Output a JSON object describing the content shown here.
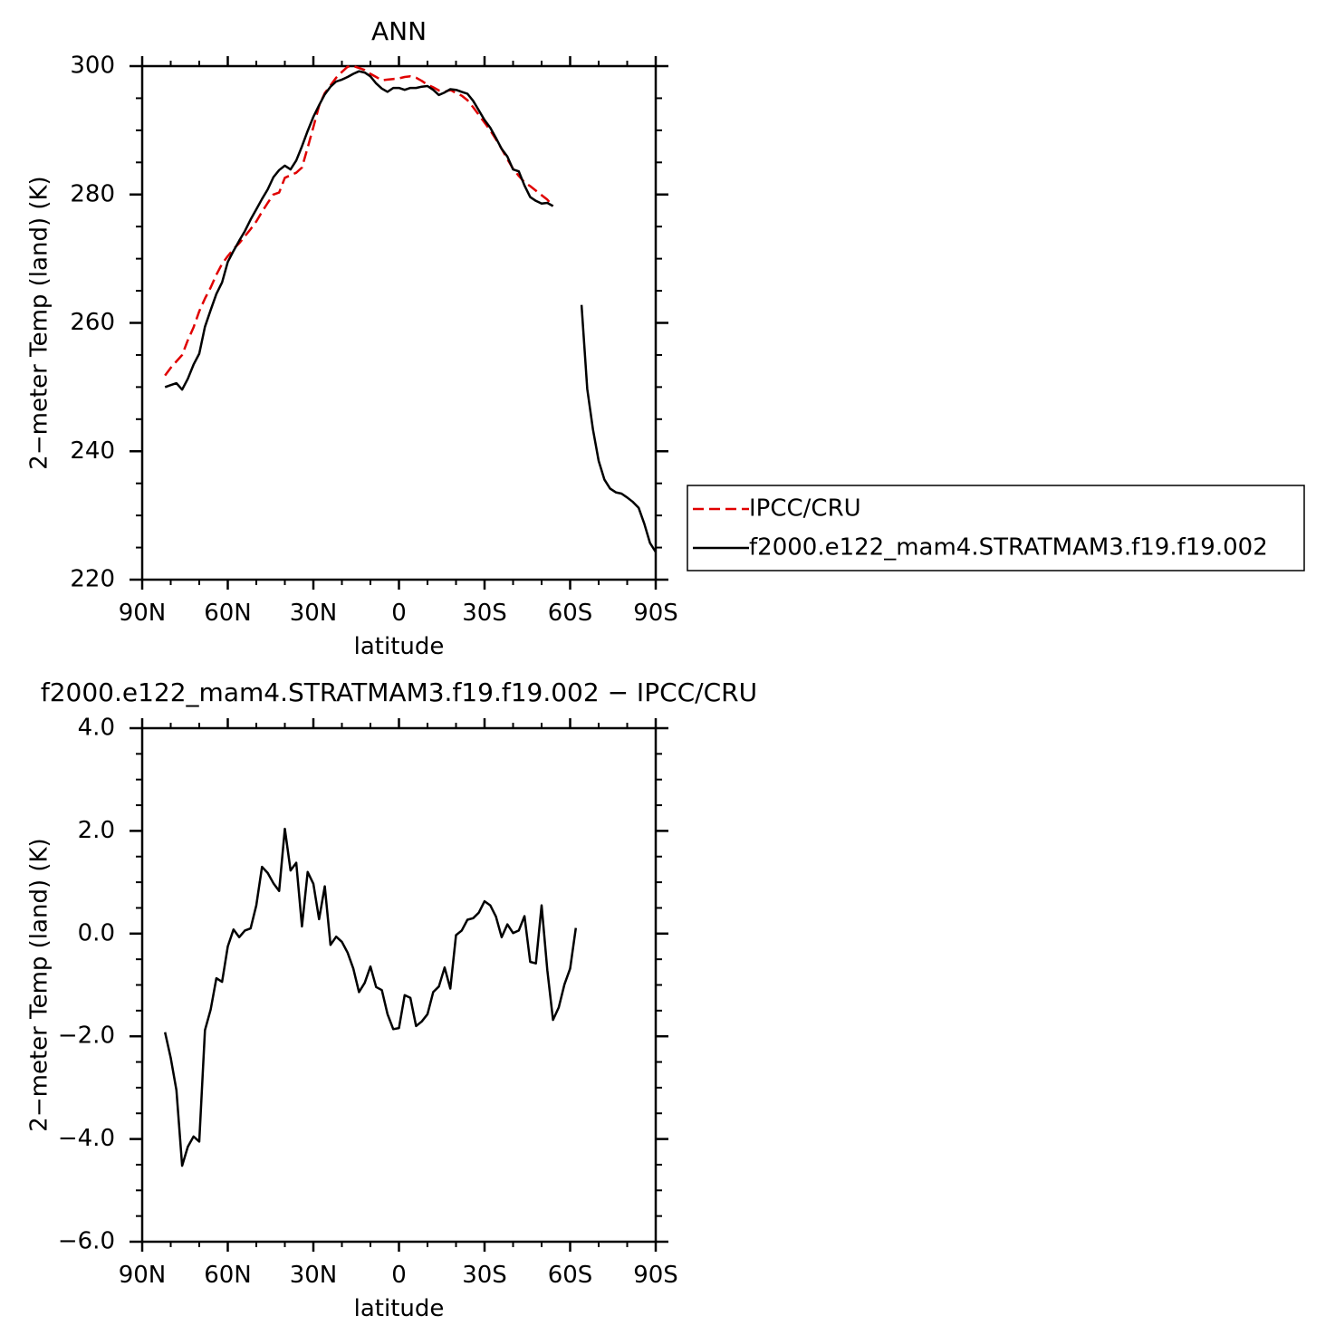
{
  "chart_data": [
    {
      "type": "line",
      "title": "ANN",
      "xlabel": "latitude",
      "ylabel": "2−meter Temp (land) (K)",
      "xlim": [
        90,
        -90
      ],
      "ylim": [
        220,
        300
      ],
      "x_ticks": [
        90,
        60,
        30,
        0,
        -30,
        -60,
        -90
      ],
      "x_tick_labels": [
        "90N",
        "60N",
        "30N",
        "0",
        "30S",
        "60S",
        "90S"
      ],
      "y_ticks": [
        220,
        240,
        260,
        280,
        300
      ],
      "y_tick_labels": [
        "220",
        "240",
        "260",
        "280",
        "300"
      ],
      "grid": false,
      "legend": {
        "placement": "right",
        "entries": [
          {
            "label": "IPCC/CRU",
            "color": "#e00000",
            "dash": "dashed"
          },
          {
            "label": "f2000.e122_mam4.STRATMAM3.f19.f19.002",
            "color": "#000000",
            "dash": "solid"
          }
        ]
      },
      "series": [
        {
          "name": "IPCC/CRU",
          "color": "#e00000",
          "dash": "dashed",
          "segments": [
            [
              [
                82,
                251.8
              ],
              [
                80,
                253
              ],
              [
                78,
                254
              ],
              [
                76,
                255
              ],
              [
                74,
                257.3
              ],
              [
                72,
                259.3
              ],
              [
                70,
                261.8
              ],
              [
                68,
                263.8
              ],
              [
                66,
                265.5
              ],
              [
                64,
                267.5
              ],
              [
                62,
                269.2
              ],
              [
                60,
                270.4
              ],
              [
                58,
                271.5
              ],
              [
                56,
                272.4
              ],
              [
                54,
                273.5
              ],
              [
                52,
                274.6
              ],
              [
                50,
                275.8
              ],
              [
                48,
                277.3
              ],
              [
                46,
                278.7
              ],
              [
                44,
                280
              ],
              [
                42,
                280.3
              ],
              [
                40,
                282.6
              ],
              [
                38,
                283
              ],
              [
                36,
                283.4
              ],
              [
                34,
                284.2
              ],
              [
                32,
                287.3
              ],
              [
                30,
                290.5
              ],
              [
                28,
                293.8
              ],
              [
                26,
                295.8
              ],
              [
                24,
                297
              ],
              [
                22,
                298.2
              ],
              [
                20,
                299.1
              ],
              [
                18,
                299.9
              ],
              [
                16,
                300
              ],
              [
                14,
                299.7
              ],
              [
                12,
                299.4
              ],
              [
                10,
                298.8
              ],
              [
                8,
                298.3
              ],
              [
                6,
                297.8
              ],
              [
                4,
                297.9
              ],
              [
                2,
                298
              ],
              [
                0,
                298.1
              ],
              [
                -2,
                298.3
              ],
              [
                -4,
                298.4
              ],
              [
                -6,
                298.2
              ],
              [
                -8,
                297.7
              ],
              [
                -10,
                297.1
              ],
              [
                -12,
                296.7
              ],
              [
                -14,
                296.2
              ],
              [
                -16,
                296
              ],
              [
                -18,
                296.3
              ],
              [
                -20,
                295.8
              ],
              [
                -22,
                295.4
              ],
              [
                -24,
                294.7
              ],
              [
                -26,
                293.6
              ],
              [
                -28,
                292.4
              ],
              [
                -30,
                291.2
              ],
              [
                -32,
                290
              ],
              [
                -34,
                288.6
              ],
              [
                -36,
                287.1
              ],
              [
                -38,
                285.5
              ],
              [
                -40,
                284
              ],
              [
                -42,
                282.9
              ],
              [
                -44,
                281.9
              ],
              [
                -46,
                281.3
              ],
              [
                -48,
                280.6
              ],
              [
                -50,
                279.9
              ],
              [
                -52,
                279.2
              ],
              [
                -54,
                278.2
              ]
            ]
          ]
        },
        {
          "name": "f2000.e122_mam4.STRATMAM3.f19.f19.002",
          "color": "#000000",
          "dash": "solid",
          "segments": [
            [
              [
                82,
                250
              ],
              [
                80,
                250.3
              ],
              [
                78,
                250.6
              ],
              [
                76,
                249.6
              ],
              [
                74,
                251.3
              ],
              [
                72,
                253.5
              ],
              [
                70,
                255.2
              ],
              [
                68,
                259.4
              ],
              [
                66,
                262
              ],
              [
                64,
                264.5
              ],
              [
                62,
                266.3
              ],
              [
                60,
                269.5
              ],
              [
                58,
                271.2
              ],
              [
                56,
                272.8
              ],
              [
                54,
                274.3
              ],
              [
                52,
                276.1
              ],
              [
                50,
                277.7
              ],
              [
                48,
                279.3
              ],
              [
                46,
                280.8
              ],
              [
                44,
                282.7
              ],
              [
                42,
                283.8
              ],
              [
                40,
                284.5
              ],
              [
                38,
                283.9
              ],
              [
                36,
                285.3
              ],
              [
                34,
                287.5
              ],
              [
                32,
                289.9
              ],
              [
                30,
                292.1
              ],
              [
                28,
                293.9
              ],
              [
                26,
                295.6
              ],
              [
                24,
                296.8
              ],
              [
                22,
                297.6
              ],
              [
                20,
                297.9
              ],
              [
                18,
                298.3
              ],
              [
                16,
                298.8
              ],
              [
                14,
                299.2
              ],
              [
                12,
                299
              ],
              [
                10,
                298.4
              ],
              [
                8,
                297.3
              ],
              [
                6,
                296.5
              ],
              [
                4,
                296
              ],
              [
                2,
                296.6
              ],
              [
                0,
                296.6
              ],
              [
                -2,
                296.3
              ],
              [
                -4,
                296.6
              ],
              [
                -6,
                296.6
              ],
              [
                -8,
                296.8
              ],
              [
                -10,
                296.9
              ],
              [
                -12,
                296.3
              ],
              [
                -14,
                295.5
              ],
              [
                -16,
                295.9
              ],
              [
                -18,
                296.4
              ],
              [
                -20,
                296.3
              ],
              [
                -22,
                296
              ],
              [
                -24,
                295.7
              ],
              [
                -26,
                294.6
              ],
              [
                -28,
                293.1
              ],
              [
                -30,
                291.6
              ],
              [
                -32,
                290.4
              ],
              [
                -34,
                288.8
              ],
              [
                -36,
                287.1
              ],
              [
                -38,
                285.9
              ],
              [
                -40,
                283.9
              ],
              [
                -42,
                283.6
              ],
              [
                -44,
                281.4
              ],
              [
                -46,
                279.6
              ],
              [
                -48,
                279
              ],
              [
                -50,
                278.6
              ],
              [
                -52,
                278.7
              ],
              [
                -54,
                278.2
              ]
            ],
            [
              [
                -64,
                262.8
              ],
              [
                -66,
                249.7
              ],
              [
                -68,
                243.4
              ],
              [
                -70,
                238.5
              ],
              [
                -72,
                235.6
              ],
              [
                -74,
                234.2
              ],
              [
                -76,
                233.6
              ],
              [
                -78,
                233.4
              ],
              [
                -80,
                232.8
              ],
              [
                -82,
                232.1
              ],
              [
                -84,
                231.2
              ],
              [
                -86,
                228.7
              ],
              [
                -88,
                225.7
              ],
              [
                -90,
                224.3
              ]
            ]
          ]
        }
      ]
    },
    {
      "type": "line",
      "title": "f2000.e122_mam4.STRATMAM3.f19.f19.002 − IPCC/CRU",
      "xlabel": "latitude",
      "ylabel": "2−meter Temp (land) (K)",
      "xlim": [
        90,
        -90
      ],
      "ylim": [
        -6,
        4
      ],
      "x_ticks": [
        90,
        60,
        30,
        0,
        -30,
        -60,
        -90
      ],
      "x_tick_labels": [
        "90N",
        "60N",
        "30N",
        "0",
        "30S",
        "60S",
        "90S"
      ],
      "y_ticks": [
        -6,
        -4,
        -2,
        0,
        2,
        4
      ],
      "y_tick_labels": [
        "−6.0",
        "−4.0",
        "−2.0",
        "0.0",
        "2.0",
        "4.0"
      ],
      "grid": false,
      "series": [
        {
          "color": "#000000",
          "dash": "solid",
          "segments": [
            [
              [
                82,
                -1.92
              ],
              [
                80,
                -2.42
              ],
              [
                78,
                -3.05
              ],
              [
                76,
                -4.52
              ],
              [
                74,
                -4.15
              ],
              [
                72,
                -3.95
              ],
              [
                70,
                -4.05
              ],
              [
                68,
                -1.88
              ],
              [
                66,
                -1.48
              ],
              [
                64,
                -0.87
              ],
              [
                62,
                -0.94
              ],
              [
                60,
                -0.25
              ],
              [
                58,
                0.08
              ],
              [
                56,
                -0.07
              ],
              [
                54,
                0.06
              ],
              [
                52,
                0.1
              ],
              [
                50,
                0.55
              ],
              [
                48,
                1.3
              ],
              [
                46,
                1.18
              ],
              [
                44,
                0.98
              ],
              [
                42,
                0.83
              ],
              [
                40,
                2.04
              ],
              [
                38,
                1.23
              ],
              [
                36,
                1.38
              ],
              [
                34,
                0.14
              ],
              [
                32,
                1.2
              ],
              [
                30,
                0.97
              ],
              [
                28,
                0.28
              ],
              [
                26,
                0.92
              ],
              [
                24,
                -0.22
              ],
              [
                22,
                -0.06
              ],
              [
                20,
                -0.16
              ],
              [
                18,
                -0.37
              ],
              [
                16,
                -0.68
              ],
              [
                14,
                -1.14
              ],
              [
                12,
                -0.96
              ],
              [
                10,
                -0.64
              ],
              [
                8,
                -1.04
              ],
              [
                6,
                -1.1
              ],
              [
                4,
                -1.57
              ],
              [
                2,
                -1.86
              ],
              [
                0,
                -1.84
              ],
              [
                -2,
                -1.2
              ],
              [
                -4,
                -1.25
              ],
              [
                -6,
                -1.8
              ],
              [
                -8,
                -1.71
              ],
              [
                -10,
                -1.57
              ],
              [
                -12,
                -1.14
              ],
              [
                -14,
                -1.03
              ],
              [
                -16,
                -0.66
              ],
              [
                -18,
                -1.07
              ],
              [
                -20,
                -0.03
              ],
              [
                -22,
                0.06
              ],
              [
                -24,
                0.27
              ],
              [
                -26,
                0.3
              ],
              [
                -28,
                0.41
              ],
              [
                -30,
                0.63
              ],
              [
                -32,
                0.55
              ],
              [
                -34,
                0.33
              ],
              [
                -36,
                -0.07
              ],
              [
                -38,
                0.18
              ],
              [
                -40,
                0.01
              ],
              [
                -42,
                0.06
              ],
              [
                -44,
                0.34
              ],
              [
                -46,
                -0.55
              ],
              [
                -48,
                -0.58
              ],
              [
                -50,
                0.55
              ],
              [
                -52,
                -0.71
              ],
              [
                -54,
                -1.68
              ],
              [
                -56,
                -1.44
              ],
              [
                -58,
                -0.99
              ],
              [
                -60,
                -0.68
              ],
              [
                -62,
                0.11
              ]
            ]
          ]
        }
      ]
    }
  ]
}
